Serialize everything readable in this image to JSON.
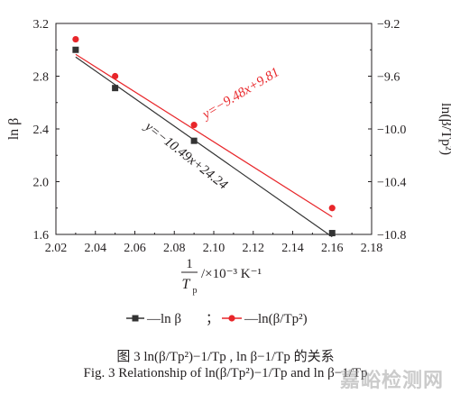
{
  "chart_data": {
    "type": "scatter",
    "x": [
      2.03,
      2.05,
      2.09,
      2.16
    ],
    "series": [
      {
        "name": "—ln β",
        "axis": "left",
        "color": "#333333",
        "marker": "square",
        "values": [
          3.0,
          2.71,
          2.31,
          1.61
        ]
      },
      {
        "name": "—ln(β/Tp²)",
        "axis": "right",
        "color": "#e8262a",
        "marker": "circle",
        "values": [
          -9.32,
          -9.6,
          -9.97,
          -10.6
        ]
      }
    ],
    "fits": [
      {
        "series": 0,
        "label": "y=−10.49x+24.24",
        "x_range": [
          2.03,
          2.16
        ]
      },
      {
        "series": 1,
        "label": "y=−9.48x+9.81",
        "x_range": [
          2.03,
          2.16
        ]
      }
    ],
    "xlim": [
      2.02,
      2.18
    ],
    "xticks": [
      "2.02",
      "2.04",
      "2.06",
      "2.08",
      "2.10",
      "2.12",
      "2.14",
      "2.16",
      "2.18"
    ],
    "ylim_left": [
      1.6,
      3.2
    ],
    "yticks_left": [
      "1.6",
      "2.0",
      "2.4",
      "2.8",
      "3.2"
    ],
    "ylim_right": [
      -10.8,
      -9.2
    ],
    "yticks_right": [
      "−10.8",
      "−10.4",
      "−10.0",
      "−9.6",
      "−9.2"
    ],
    "xlabel_num": "1",
    "xlabel_den": "T",
    "xlabel_den_sub": "p",
    "xlabel_unit": "/×10⁻³ K⁻¹",
    "ylabel_left": "ln β",
    "ylabel_right": "ln(β/Tp²)",
    "legend_separator": "；",
    "legend_placement": "bottom-center"
  },
  "caption_cn": "图 3   ln(β/Tp²)−1/Tp , ln β−1/Tp 的关系",
  "caption_en": "Fig. 3   Relationship of ln(β/Tp²)−1/Tp and ln β−1/Tp",
  "watermark": "嘉峪检测网"
}
